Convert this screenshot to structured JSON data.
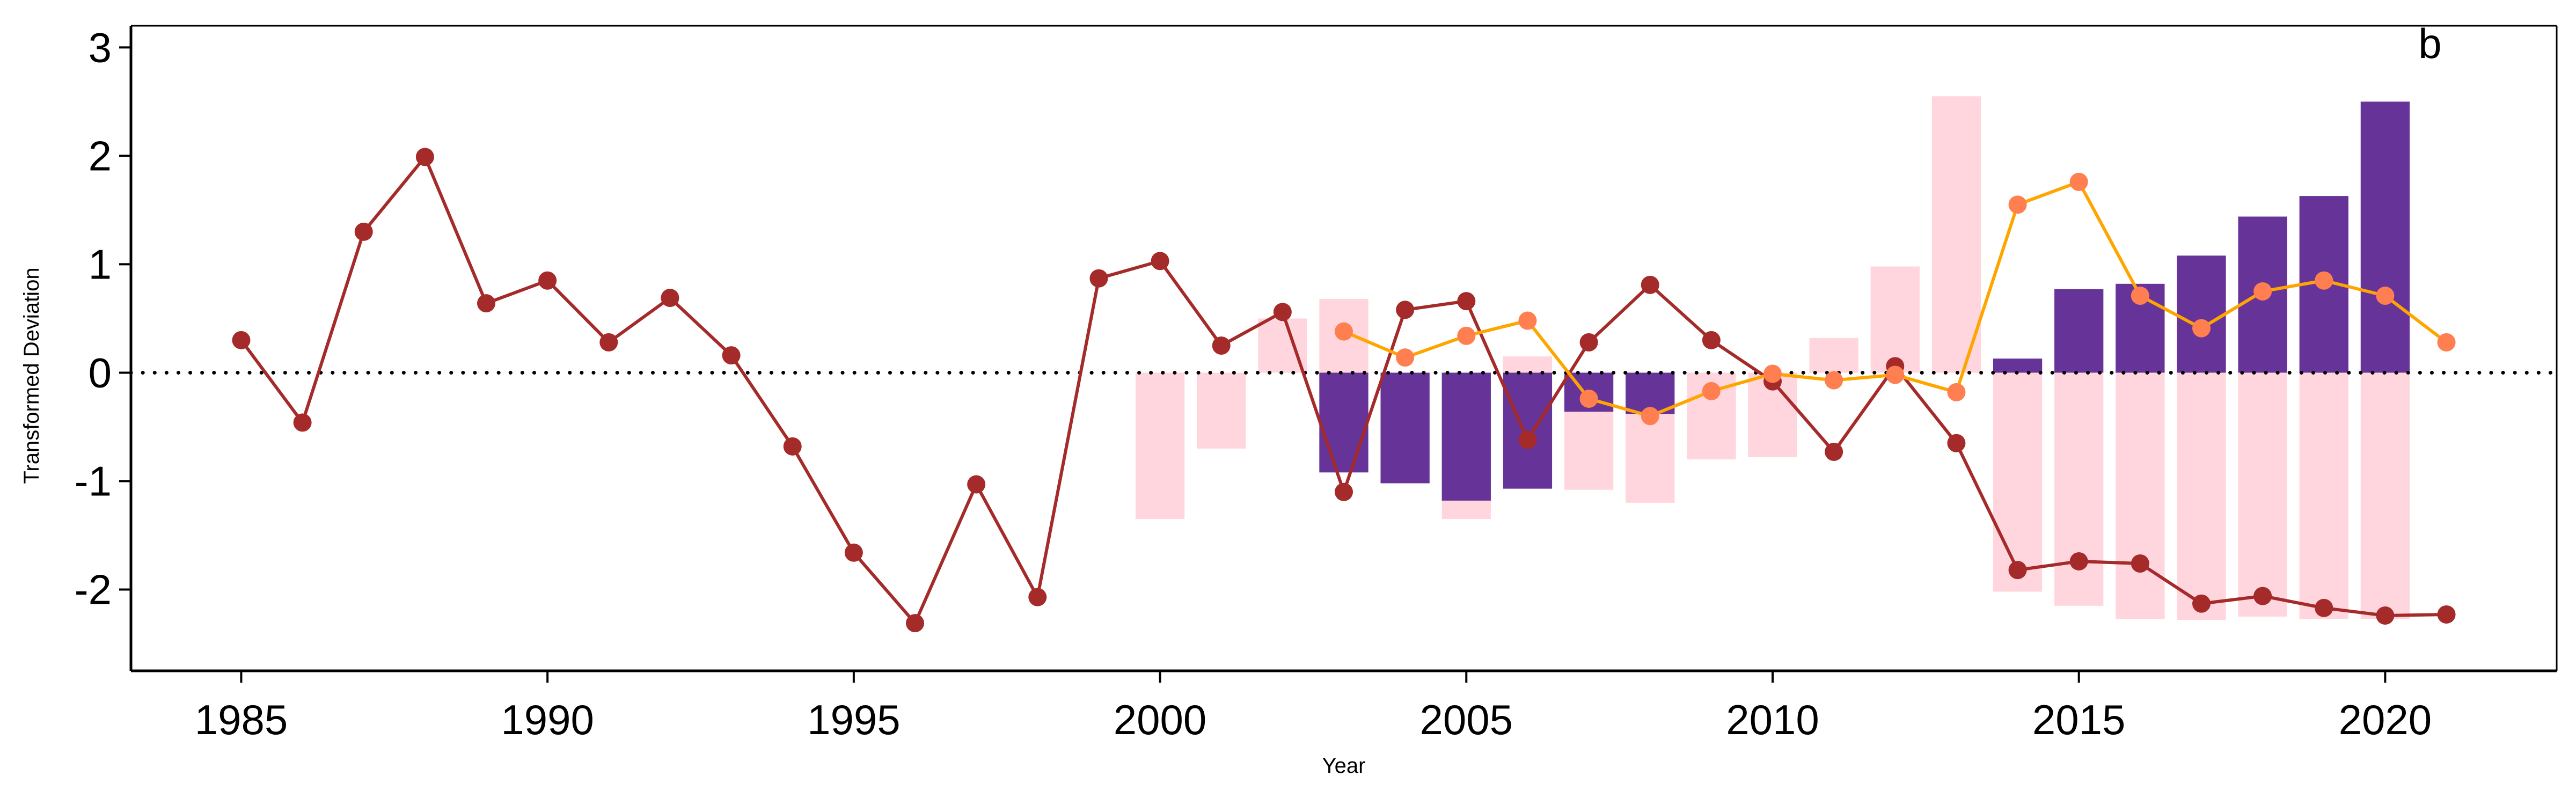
{
  "chart_data": {
    "type": "bar+line",
    "panel_label": "b",
    "xlabel": "Year",
    "ylabel": "Transformed Deviation",
    "xlim": [
      1983.2,
      2022.8
    ],
    "ylim": [
      -2.75,
      3.2
    ],
    "x_ticks": [
      1985,
      1990,
      1995,
      2000,
      2005,
      2010,
      2015,
      2020
    ],
    "y_ticks": [
      -2,
      -1,
      0,
      1,
      2,
      3
    ],
    "reference_line": {
      "y": 0,
      "style": "dotted"
    },
    "grid": false,
    "legend": "none",
    "bar_width": 0.8,
    "series": [
      {
        "kind": "bar",
        "color": "#ffd6de",
        "x": [
          2000,
          2001,
          2002,
          2003,
          2004,
          2005,
          2006,
          2007,
          2008,
          2009,
          2010,
          2011,
          2012,
          2013,
          2014,
          2015,
          2016,
          2017,
          2018,
          2019,
          2020
        ],
        "values": [
          -1.35,
          -0.7,
          0.5,
          0.68,
          -0.02,
          -1.35,
          0.15,
          -1.08,
          -1.2,
          -0.8,
          -0.78,
          0.32,
          0.98,
          2.55,
          -2.02,
          -2.15,
          -2.27,
          -2.28,
          -2.25,
          -2.27,
          -2.27
        ]
      },
      {
        "kind": "bar",
        "color": "#663399",
        "x": [
          2003,
          2004,
          2005,
          2006,
          2007,
          2008,
          2014,
          2015,
          2016,
          2017,
          2018,
          2019,
          2020
        ],
        "values": [
          -0.92,
          -1.02,
          -1.18,
          -1.07,
          -0.36,
          -0.38,
          0.13,
          0.77,
          0.82,
          1.08,
          1.44,
          1.63,
          2.5
        ]
      },
      {
        "kind": "line",
        "color": "#a52a2a",
        "marker_color": "#a52a2a",
        "x": [
          1985,
          1986,
          1987,
          1988,
          1989,
          1990,
          1991,
          1992,
          1993,
          1994,
          1995,
          1996,
          1997,
          1998,
          1999,
          2000,
          2001,
          2002,
          2003,
          2004,
          2005,
          2006,
          2007,
          2008,
          2009,
          2010,
          2011,
          2012,
          2013,
          2014,
          2015,
          2016,
          2017,
          2018,
          2019,
          2020,
          2021
        ],
        "values": [
          0.3,
          -0.46,
          1.3,
          1.99,
          0.64,
          0.85,
          0.28,
          0.69,
          0.16,
          -0.68,
          -1.66,
          -2.31,
          -1.03,
          -2.07,
          0.87,
          1.03,
          0.25,
          0.56,
          -1.1,
          0.58,
          0.66,
          -0.62,
          0.28,
          0.81,
          0.3,
          -0.08,
          -0.73,
          0.06,
          -0.65,
          -1.82,
          -1.74,
          -1.76,
          -2.13,
          -2.06,
          -2.17,
          -2.24,
          -2.23
        ]
      },
      {
        "kind": "line",
        "color": "#ffa500",
        "marker_color": "#ff7f50",
        "x": [
          2003,
          2004,
          2005,
          2006,
          2007,
          2008,
          2009,
          2010,
          2011,
          2012,
          2013,
          2014,
          2015,
          2016,
          2017,
          2018,
          2019,
          2020,
          2021
        ],
        "values": [
          0.38,
          0.14,
          0.34,
          0.48,
          -0.24,
          -0.4,
          -0.17,
          -0.01,
          -0.07,
          -0.02,
          -0.18,
          1.55,
          1.76,
          0.71,
          0.41,
          0.75,
          0.85,
          0.71,
          0.28
        ]
      }
    ]
  }
}
